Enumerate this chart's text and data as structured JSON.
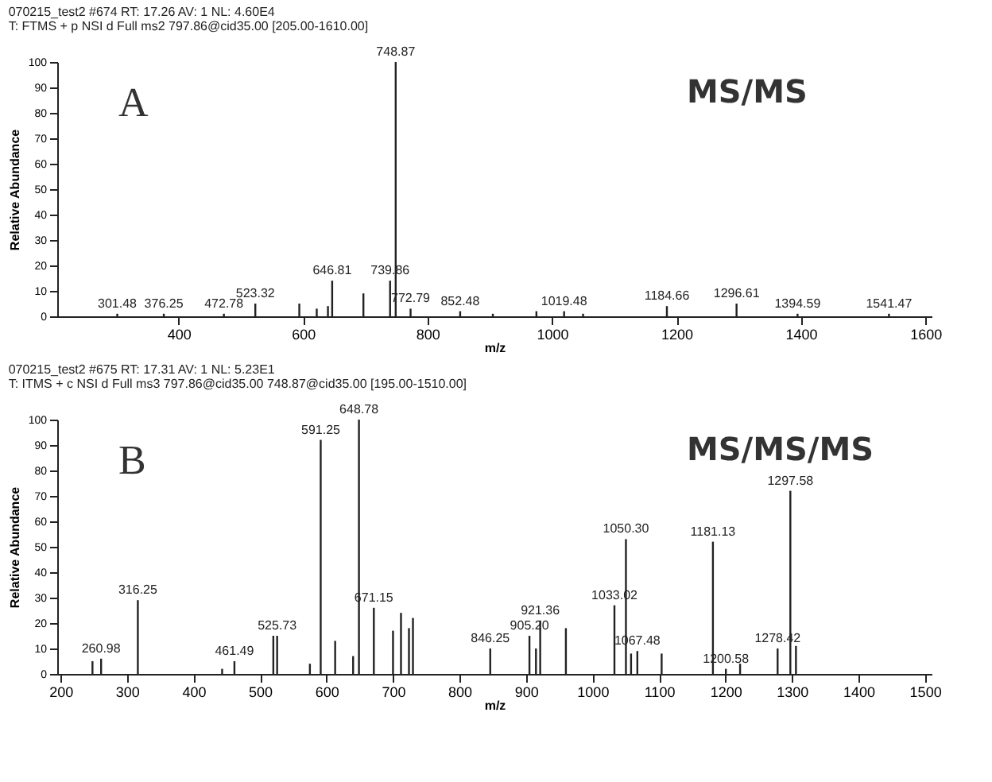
{
  "chart_data": [
    {
      "type": "bar",
      "title": "070215_test2 #674  RT: 17.26  AV: 1  NL: 4.60E4",
      "subtitle": "T: FTMS + p NSI d Full ms2 797.86@cid35.00 [205.00-1610.00]",
      "xlabel": "m/z",
      "ylabel": "Relative Abundance",
      "annotations": [
        "A",
        "MS/MS",
        {
          "text": "301.48",
          "x": 301.48,
          "y": 1
        },
        {
          "text": "376.25",
          "x": 376.25,
          "y": 1
        },
        {
          "text": "472.78",
          "x": 472.78,
          "y": 1
        },
        {
          "text": "523.32",
          "x": 523.32,
          "y": 5
        },
        {
          "text": "646.81",
          "x": 646.81,
          "y": 14
        },
        {
          "text": "739.86",
          "x": 739.86,
          "y": 14
        },
        {
          "text": "748.87",
          "x": 748.87,
          "y": 100
        },
        {
          "text": "772.79",
          "x": 772.79,
          "y": 3
        },
        {
          "text": "852.48",
          "x": 852.48,
          "y": 2
        },
        {
          "text": "1019.48",
          "x": 1019.48,
          "y": 2
        },
        {
          "text": "1184.66",
          "x": 1184.66,
          "y": 4
        },
        {
          "text": "1296.61",
          "x": 1296.61,
          "y": 5
        },
        {
          "text": "1394.59",
          "x": 1394.59,
          "y": 1
        },
        {
          "text": "1541.47",
          "x": 1541.47,
          "y": 1
        }
      ],
      "x": [
        301.48,
        376.25,
        472.78,
        523.32,
        594,
        622,
        640,
        646.81,
        697,
        739.86,
        748.87,
        772.79,
        852.48,
        905,
        975,
        1019.48,
        1050,
        1184.66,
        1296.61,
        1394.59,
        1541.47
      ],
      "values": [
        1,
        1,
        1,
        5,
        5,
        3,
        4,
        14,
        9,
        14,
        100,
        3,
        2,
        1,
        2,
        2,
        1,
        4,
        5,
        1,
        1
      ],
      "color": "#222222",
      "grid": false,
      "legend": false,
      "xlim": [
        205,
        1610
      ],
      "xticks": [
        400,
        600,
        800,
        1000,
        1200,
        1400,
        1600
      ],
      "ylim": [
        0,
        100
      ],
      "yticks": [
        0,
        10,
        20,
        30,
        40,
        50,
        60,
        70,
        80,
        90,
        100
      ]
    },
    {
      "type": "bar",
      "title": "070215_test2 #675  RT: 17.31  AV: 1  NL: 5.23E1",
      "subtitle": "T: ITMS + c NSI d Full ms3 797.86@cid35.00 748.87@cid35.00 [195.00-1510.00]",
      "xlabel": "m/z",
      "ylabel": "Relative Abundance",
      "annotations": [
        "B",
        "MS/MS/MS",
        {
          "text": "260.98",
          "x": 260.98,
          "y": 6
        },
        {
          "text": "316.25",
          "x": 316.25,
          "y": 29
        },
        {
          "text": "461.49",
          "x": 461.49,
          "y": 5
        },
        {
          "text": "525.73",
          "x": 525.73,
          "y": 15
        },
        {
          "text": "591.25",
          "x": 591.25,
          "y": 92
        },
        {
          "text": "648.78",
          "x": 648.78,
          "y": 100
        },
        {
          "text": "671.15",
          "x": 671.15,
          "y": 26
        },
        {
          "text": "846.25",
          "x": 846.25,
          "y": 10
        },
        {
          "text": "905.20",
          "x": 905.2,
          "y": 15
        },
        {
          "text": "921.36",
          "x": 921.36,
          "y": 21
        },
        {
          "text": "1033.02",
          "x": 1033.02,
          "y": 27
        },
        {
          "text": "1050.30",
          "x": 1050.3,
          "y": 53
        },
        {
          "text": "1067.48",
          "x": 1067.48,
          "y": 9
        },
        {
          "text": "1181.13",
          "x": 1181.13,
          "y": 52
        },
        {
          "text": "1200.58",
          "x": 1200.58,
          "y": 2
        },
        {
          "text": "1278.42",
          "x": 1278.42,
          "y": 10
        },
        {
          "text": "1297.58",
          "x": 1297.58,
          "y": 72
        }
      ],
      "x": [
        248,
        260.98,
        316.25,
        443,
        461.49,
        520,
        525.73,
        575,
        591.25,
        613,
        640,
        648.78,
        671.15,
        700,
        712,
        724,
        730,
        846.25,
        905.2,
        915,
        921.36,
        960,
        1033.02,
        1050.3,
        1058,
        1067.48,
        1104,
        1181.13,
        1200.58,
        1222,
        1278.42,
        1297.58,
        1306
      ],
      "values": [
        5,
        6,
        29,
        2,
        5,
        15,
        15,
        4,
        92,
        13,
        7,
        100,
        26,
        17,
        24,
        18,
        22,
        10,
        15,
        10,
        21,
        18,
        27,
        53,
        8,
        9,
        8,
        52,
        2,
        4,
        10,
        72,
        11
      ],
      "color": "#222222",
      "grid": false,
      "legend": false,
      "xlim": [
        195,
        1510
      ],
      "xticks": [
        200,
        300,
        400,
        500,
        600,
        700,
        800,
        900,
        1000,
        1100,
        1200,
        1300,
        1400,
        1500
      ],
      "ylim": [
        0,
        100
      ],
      "yticks": [
        0,
        10,
        20,
        30,
        40,
        50,
        60,
        70,
        80,
        90,
        100
      ]
    }
  ]
}
